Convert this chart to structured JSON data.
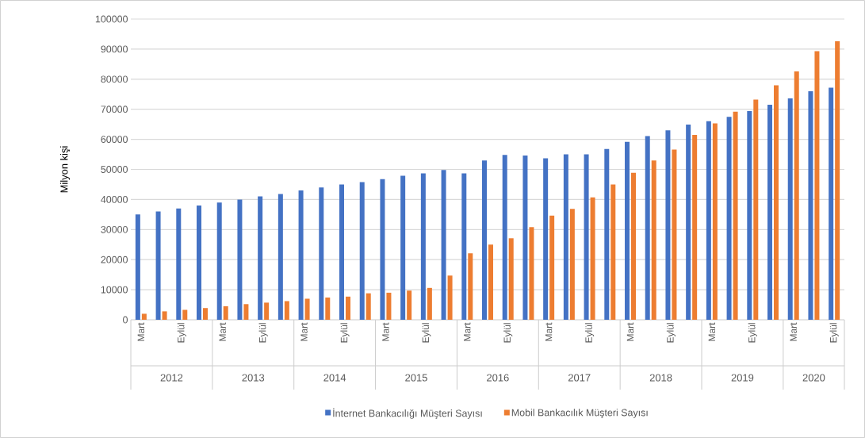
{
  "chart_data": {
    "type": "bar",
    "ylabel": "Milyon kişi",
    "categories": [
      "Mart",
      null,
      "Eylül",
      null,
      "Mart",
      null,
      "Eylül",
      null,
      "Mart",
      null,
      "Eylül",
      null,
      "Mart",
      null,
      "Eylül",
      null,
      "Mart",
      null,
      "Eylül",
      null,
      "Mart",
      null,
      "Eylül",
      null,
      "Mart",
      null,
      "Eylül",
      null,
      "Mart",
      null,
      "Eylül",
      null,
      "Mart",
      null,
      "Eylül"
    ],
    "annotations": [
      "2012",
      "2013",
      "2014",
      "2015",
      "2016",
      "2017",
      "2018",
      "2019",
      "2020"
    ],
    "series": [
      {
        "name": "İnternet Bankacılığı Müşteri Sayısı",
        "color": "#4472c4",
        "values": [
          35000,
          36000,
          37000,
          38000,
          39000,
          40000,
          41000,
          41800,
          43000,
          44000,
          45000,
          45800,
          46800,
          47900,
          48700,
          49800,
          48700,
          53000,
          54800,
          54600,
          53700,
          55000,
          55000,
          56800,
          59200,
          61100,
          63000,
          64900,
          66000,
          67500,
          69400,
          71500,
          73600,
          76000,
          77200
        ]
      },
      {
        "name": "Mobil Bankacılık Müşteri Sayısı",
        "color": "#ed7d31",
        "values": [
          2000,
          2800,
          3300,
          3900,
          4500,
          5200,
          5700,
          6200,
          7000,
          7400,
          7700,
          8800,
          9000,
          9700,
          10600,
          14700,
          22100,
          25000,
          27100,
          30800,
          34600,
          36900,
          40700,
          45000,
          48900,
          53000,
          56600,
          61500,
          65300,
          69200,
          73200,
          78000,
          82600,
          89300,
          92600
        ]
      }
    ],
    "ylim": [
      0,
      100000
    ],
    "yticks": [
      0,
      10000,
      20000,
      30000,
      40000,
      50000,
      60000,
      70000,
      80000,
      90000,
      100000
    ],
    "grid": "y",
    "legend": "bottom"
  }
}
